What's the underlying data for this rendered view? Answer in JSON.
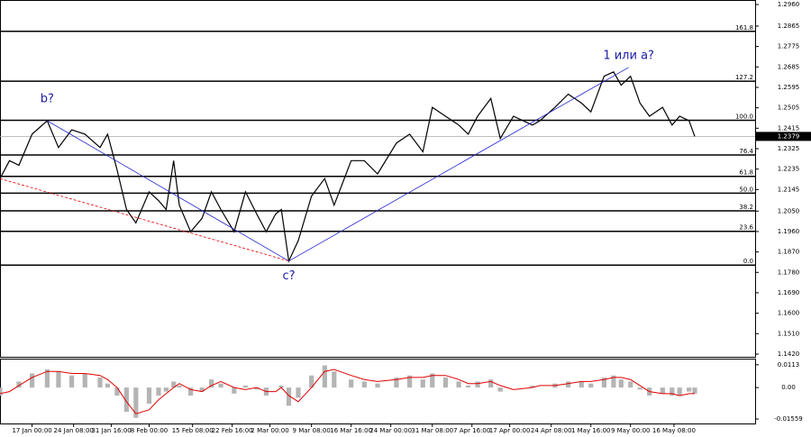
{
  "chart_data": [
    {
      "type": "line",
      "color": "#000000",
      "x": [
        0,
        5,
        10,
        17,
        25,
        31,
        38,
        45,
        53,
        57,
        62,
        67,
        72,
        79,
        84,
        88,
        92,
        95,
        101,
        107,
        112,
        117,
        124,
        130,
        136,
        141,
        146,
        149,
        153,
        158,
        165,
        172,
        177,
        186,
        193,
        200,
        210,
        217,
        224,
        229,
        236,
        243,
        248,
        253,
        260,
        265,
        272,
        282,
        286,
        294,
        301,
        308,
        313,
        320,
        325,
        329,
        334,
        339,
        344,
        351,
        356,
        360,
        365,
        368
      ],
      "values": [
        1.2193,
        1.2272,
        1.2252,
        1.2389,
        1.2448,
        1.233,
        1.2408,
        1.2389,
        1.233,
        1.2389,
        1.2232,
        1.2057,
        1.1998,
        1.2135,
        1.2096,
        1.2057,
        1.2272,
        1.2076,
        1.1959,
        1.2018,
        1.2135,
        1.2057,
        1.1959,
        1.2135,
        1.2037,
        1.1959,
        1.2037,
        1.2057,
        1.183,
        1.192,
        1.2116,
        1.2193,
        1.2076,
        1.2272,
        1.2272,
        1.2214,
        1.235,
        1.2389,
        1.2311,
        1.2507,
        1.2468,
        1.2429,
        1.2389,
        1.2468,
        1.2546,
        1.237,
        1.2468,
        1.2429,
        1.2448,
        1.2507,
        1.2565,
        1.2526,
        1.2487,
        1.2644,
        1.2663,
        1.2605,
        1.2644,
        1.2526,
        1.2468,
        1.2507,
        1.2429,
        1.2468,
        1.2448,
        1.2379
      ],
      "xlim": [
        0,
        400
      ],
      "xticks": [
        {
          "value": 17,
          "label": "17 Jan 00:00"
        },
        {
          "value": 39,
          "label": "24 Jan 08:00"
        },
        {
          "value": 59,
          "label": "31 Jan 16:00"
        },
        {
          "value": 79,
          "label": "8 Feb 00:00"
        },
        {
          "value": 102,
          "label": "15 Feb 08:00"
        },
        {
          "value": 123,
          "label": "22 Feb 16:00"
        },
        {
          "value": 143,
          "label": "2 Mar 00:00"
        },
        {
          "value": 165,
          "label": "9 Mar 08:00"
        },
        {
          "value": 186,
          "label": "16 Mar 16:00"
        },
        {
          "value": 207,
          "label": "24 Mar 00:00"
        },
        {
          "value": 229,
          "label": "31 Mar 08:00"
        },
        {
          "value": 250,
          "label": "7 Apr 16:00"
        },
        {
          "value": 270,
          "label": "17 Apr 00:00"
        },
        {
          "value": 292,
          "label": "24 Apr 08:00"
        },
        {
          "value": 313,
          "label": "1 May 16:00"
        },
        {
          "value": 334,
          "label": "9 May 00:00"
        },
        {
          "value": 357,
          "label": "16 May 08:00"
        }
      ],
      "ylim": [
        1.1408,
        1.2976
      ],
      "yticks": [
        {
          "value": 1.296,
          "label": "1.2960"
        },
        {
          "value": 1.2865,
          "label": "1.2865"
        },
        {
          "value": 1.2775,
          "label": "1.2775"
        },
        {
          "value": 1.2685,
          "label": "1.2685"
        },
        {
          "value": 1.2595,
          "label": "1.2595"
        },
        {
          "value": 1.2505,
          "label": "1.2505"
        },
        {
          "value": 1.2415,
          "label": "1.2415"
        },
        {
          "value": 1.2325,
          "label": "1.2325"
        },
        {
          "value": 1.2235,
          "label": "1.2235"
        },
        {
          "value": 1.2145,
          "label": "1.2145"
        },
        {
          "value": 1.205,
          "label": "1.2050"
        },
        {
          "value": 1.196,
          "label": "1.1960"
        },
        {
          "value": 1.187,
          "label": "1.1870"
        },
        {
          "value": 1.178,
          "label": "1.1780"
        },
        {
          "value": 1.169,
          "label": "1.1690"
        },
        {
          "value": 1.16,
          "label": "1.1600"
        },
        {
          "value": 1.151,
          "label": "1.1510"
        },
        {
          "value": 1.142,
          "label": "1.1420"
        }
      ],
      "levels": [
        {
          "label": "161.8",
          "value": 1.2842
        },
        {
          "label": "127.2",
          "value": 1.2622
        },
        {
          "label": "100.0",
          "value": 1.245
        },
        {
          "label": "76.4",
          "value": 1.2297
        },
        {
          "label": "61.8",
          "value": 1.2203
        },
        {
          "label": "50.0",
          "value": 1.2129
        },
        {
          "label": "38.2",
          "value": 1.2051
        },
        {
          "label": "23.6",
          "value": 1.1961
        },
        {
          "label": "0.0",
          "value": 1.1812
        }
      ],
      "annotations": [
        {
          "text": "b?",
          "x": 25,
          "y": 1.2448
        },
        {
          "text": "c?",
          "x": 153,
          "y": 1.183
        },
        {
          "text": "1 или а?",
          "x": 333,
          "y": 1.2683
        }
      ],
      "last_price": {
        "value": 1.2379,
        "label": "1.2379"
      }
    },
    {
      "type": "bar",
      "x": [
        0,
        5,
        10,
        17,
        25,
        31,
        38,
        45,
        53,
        57,
        62,
        67,
        72,
        79,
        84,
        88,
        92,
        95,
        101,
        107,
        112,
        117,
        124,
        130,
        136,
        141,
        146,
        149,
        153,
        158,
        165,
        172,
        177,
        186,
        193,
        200,
        210,
        217,
        224,
        229,
        236,
        243,
        248,
        253,
        260,
        265,
        272,
        282,
        286,
        294,
        301,
        308,
        313,
        320,
        325,
        329,
        334,
        339,
        344,
        351,
        356,
        360,
        365,
        368
      ],
      "series": [
        {
          "color": "#b4b4b4",
          "values": [
            -0.004,
            0.0,
            0.003,
            0.007,
            0.009,
            0.008,
            0.006,
            0.007,
            0.005,
            0.002,
            -0.004,
            -0.012,
            -0.015,
            -0.008,
            -0.004,
            -0.002,
            0.003,
            0.001,
            -0.004,
            -0.002,
            0.004,
            0.002,
            -0.003,
            0.001,
            -0.001,
            -0.004,
            0.0,
            0.001,
            -0.009,
            -0.005,
            0.006,
            0.011,
            0.008,
            0.004,
            0.003,
            0.002,
            0.005,
            0.006,
            0.004,
            0.007,
            0.005,
            0.003,
            0.001,
            0.003,
            0.004,
            -0.002,
            0.0,
            0.001,
            0.0,
            0.002,
            0.003,
            0.003,
            0.002,
            0.005,
            0.006,
            0.004,
            0.003,
            -0.001,
            -0.004,
            -0.003,
            -0.004,
            -0.004,
            -0.002,
            -0.003
          ]
        },
        {
          "color": "#e00000",
          "values": [
            -0.003,
            -0.002,
            0.001,
            0.005,
            0.008,
            0.008,
            0.007,
            0.007,
            0.006,
            0.004,
            0.0,
            -0.007,
            -0.013,
            -0.011,
            -0.006,
            -0.003,
            0.0,
            0.002,
            -0.001,
            -0.002,
            0.001,
            0.003,
            0.0,
            -0.001,
            0.0,
            -0.002,
            -0.002,
            0.0,
            -0.004,
            -0.007,
            0.0,
            0.008,
            0.009,
            0.006,
            0.004,
            0.003,
            0.004,
            0.005,
            0.005,
            0.006,
            0.006,
            0.004,
            0.002,
            0.002,
            0.003,
            0.001,
            -0.001,
            0.0,
            0.001,
            0.001,
            0.002,
            0.003,
            0.003,
            0.004,
            0.005,
            0.005,
            0.004,
            0.001,
            -0.002,
            -0.003,
            -0.003,
            -0.004,
            -0.003,
            -0.003
          ]
        }
      ],
      "xlim": [
        0,
        400
      ],
      "ylim": [
        -0.0178,
        0.0139
      ],
      "yticks": [
        {
          "value": 0.0113,
          "label": "0.0113"
        },
        {
          "value": 0,
          "label": "0.00"
        },
        {
          "value": -0.01559,
          "label": "-0.01559"
        }
      ]
    }
  ]
}
